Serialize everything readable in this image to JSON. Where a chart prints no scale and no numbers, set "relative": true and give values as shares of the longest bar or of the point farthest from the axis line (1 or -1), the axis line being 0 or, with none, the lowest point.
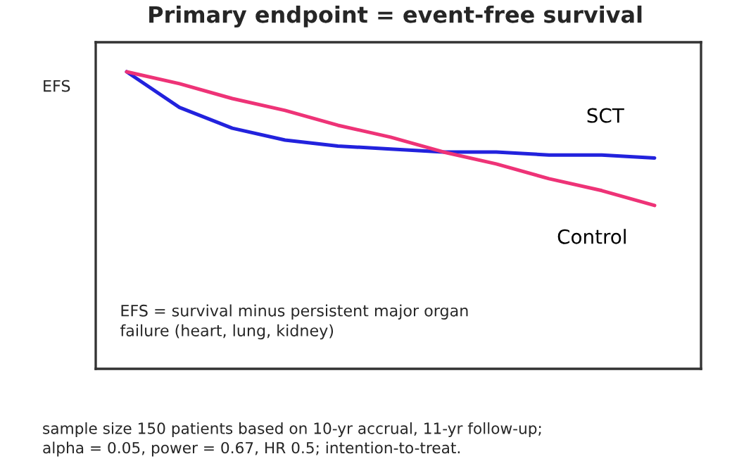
{
  "chart_data": {
    "type": "line",
    "title": "Primary endpoint = event-free survival",
    "ylabel": "EFS",
    "relative": true,
    "categories": [
      null,
      null,
      null,
      null,
      null,
      null,
      null,
      null,
      null,
      null,
      null
    ],
    "series": [
      {
        "name": "SCT",
        "color": "#2222dd",
        "values": [
          1,
          0.88,
          0.81,
          0.77,
          0.75,
          0.74,
          0.73,
          0.73,
          0.72,
          0.72,
          0.71
        ]
      },
      {
        "name": "Control",
        "color": "#ee3377",
        "values": [
          1,
          0.96,
          0.91,
          0.87,
          0.82,
          0.78,
          0.73,
          0.69,
          0.64,
          0.6,
          0.55
        ]
      }
    ],
    "annotations": [
      "EFS = survival minus persistent major organ\nfailure (heart, lung, kidney)",
      "sample size 150 patients based on 10-yr accrual, 11-yr follow-up;\nalpha = 0.05, power = 0.67, HR 0.5; intention-to-treat."
    ],
    "legend": false,
    "marker": "none",
    "line_style": "solid"
  }
}
